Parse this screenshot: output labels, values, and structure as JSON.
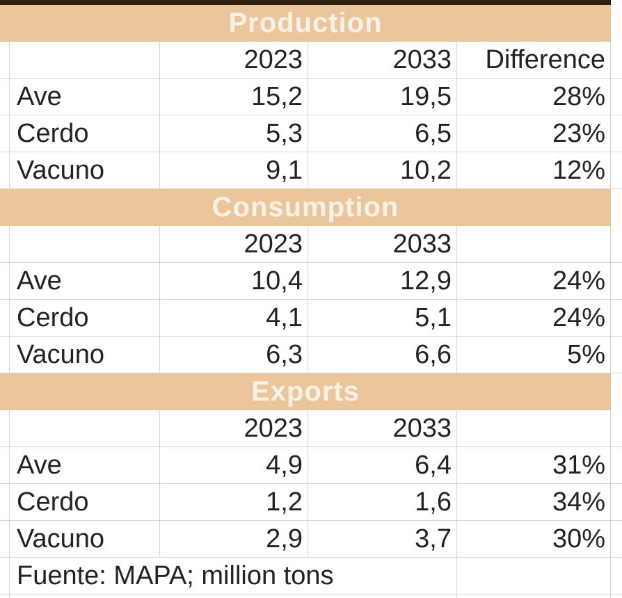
{
  "colors": {
    "band-bg": "#ebc69c",
    "band-text": "#f8f1e5",
    "top-bar": "#30210e",
    "grid": "#d6d6d6",
    "text": "#232323"
  },
  "sections": [
    {
      "title": "Production",
      "columns": [
        "",
        "2023",
        "2033",
        "Difference"
      ],
      "rows": [
        {
          "label": "Ave",
          "y2023": "15,2",
          "y2033": "19,5",
          "diff": "28%"
        },
        {
          "label": "Cerdo",
          "y2023": "5,3",
          "y2033": "6,5",
          "diff": "23%"
        },
        {
          "label": "Vacuno",
          "y2023": "9,1",
          "y2033": "10,2",
          "diff": "12%"
        }
      ]
    },
    {
      "title": "Consumption",
      "columns": [
        "",
        "2023",
        "2033",
        ""
      ],
      "rows": [
        {
          "label": "Ave",
          "y2023": "10,4",
          "y2033": "12,9",
          "diff": "24%"
        },
        {
          "label": "Cerdo",
          "y2023": "4,1",
          "y2033": "5,1",
          "diff": "24%"
        },
        {
          "label": "Vacuno",
          "y2023": "6,3",
          "y2033": "6,6",
          "diff": "5%"
        }
      ]
    },
    {
      "title": "Exports",
      "columns": [
        "",
        "2023",
        "2033",
        ""
      ],
      "rows": [
        {
          "label": "Ave",
          "y2023": "4,9",
          "y2033": "6,4",
          "diff": "31%"
        },
        {
          "label": "Cerdo",
          "y2023": "1,2",
          "y2033": "1,6",
          "diff": "34%"
        },
        {
          "label": "Vacuno",
          "y2023": "2,9",
          "y2033": "3,7",
          "diff": "30%"
        }
      ]
    }
  ],
  "footer": {
    "source_note": "Fuente: MAPA; million tons"
  }
}
